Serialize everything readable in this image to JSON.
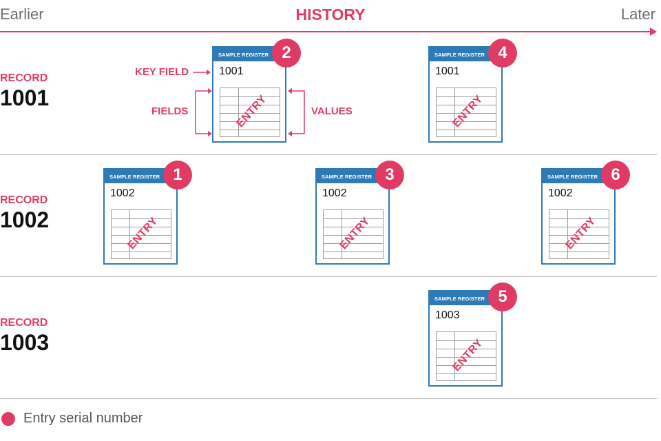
{
  "timeline": {
    "start_label": "Earlier",
    "title": "HISTORY",
    "end_label": "Later"
  },
  "records": [
    {
      "label": "RECORD",
      "number": "1001"
    },
    {
      "label": "RECORD",
      "number": "1002"
    },
    {
      "label": "RECORD",
      "number": "1003"
    }
  ],
  "card": {
    "header": "SAMPLE REGISTER",
    "stamp": "ENTRY"
  },
  "entries": [
    {
      "serial": "2",
      "key": "1001"
    },
    {
      "serial": "4",
      "key": "1001"
    },
    {
      "serial": "1",
      "key": "1002"
    },
    {
      "serial": "3",
      "key": "1002"
    },
    {
      "serial": "6",
      "key": "1002"
    },
    {
      "serial": "5",
      "key": "1003"
    }
  ],
  "annotations": {
    "key_field": "KEY FIELD",
    "fields": "FIELDS",
    "values": "VALUES"
  },
  "legend": {
    "text": "Entry serial number",
    "color": "#e03c63"
  },
  "colors": {
    "accent": "#e03c63",
    "card_blue": "#2d7ab7"
  }
}
